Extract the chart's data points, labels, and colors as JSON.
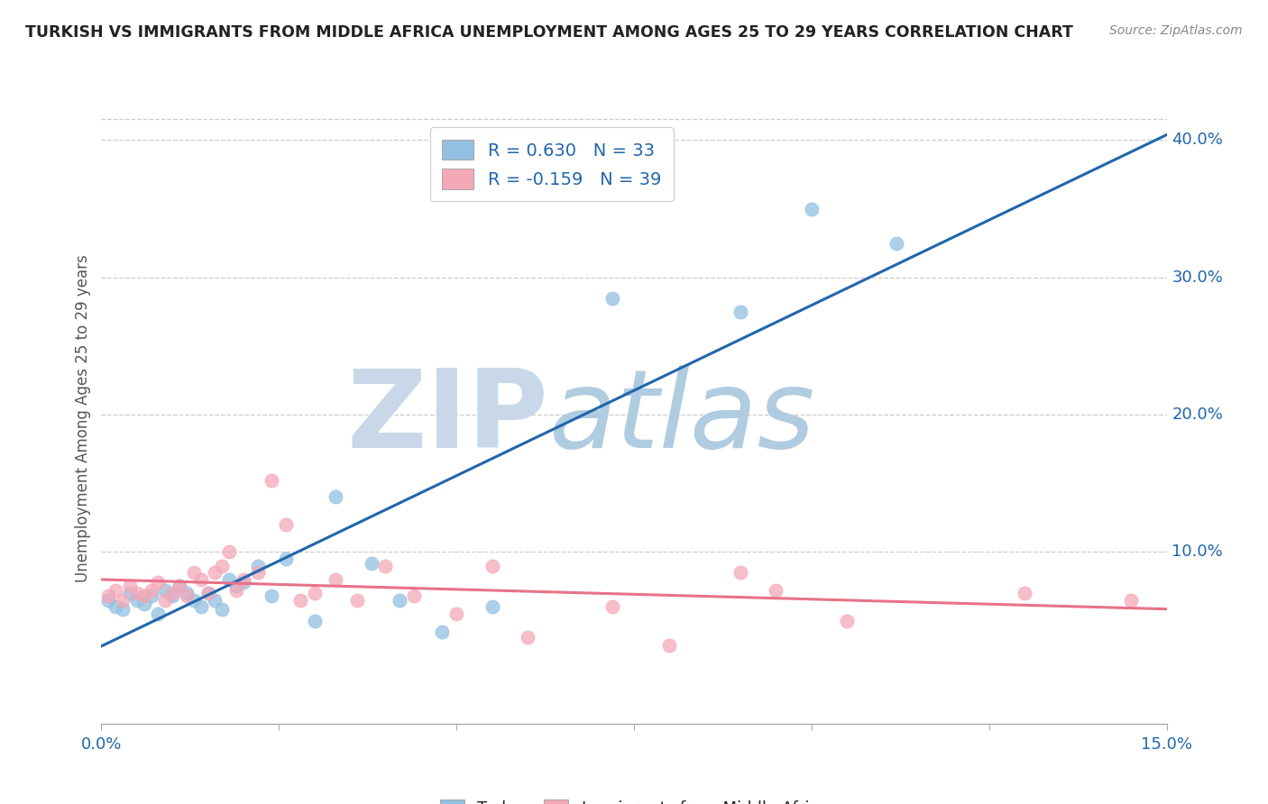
{
  "title": "TURKISH VS IMMIGRANTS FROM MIDDLE AFRICA UNEMPLOYMENT AMONG AGES 25 TO 29 YEARS CORRELATION CHART",
  "source": "Source: ZipAtlas.com",
  "ylabel": "Unemployment Among Ages 25 to 29 years",
  "xlim": [
    0.0,
    0.15
  ],
  "ylim": [
    -0.025,
    0.42
  ],
  "xticks": [
    0.0,
    0.025,
    0.05,
    0.075,
    0.1,
    0.125,
    0.15
  ],
  "xtick_labels": [
    "0.0%",
    "",
    "",
    "",
    "",
    "",
    "15.0%"
  ],
  "yticks_right": [
    0.1,
    0.2,
    0.3,
    0.4
  ],
  "ytick_labels_right": [
    "10.0%",
    "20.0%",
    "30.0%",
    "40.0%"
  ],
  "turks_color": "#92c0e0",
  "immigrants_color": "#f4a8b8",
  "turks_R": 0.63,
  "turks_N": 33,
  "immigrants_R": -0.159,
  "immigrants_N": 39,
  "trend_blue_color": "#2166ac",
  "trend_pink_color": "#e8728a",
  "watermark_zip_color": "#c8d8e8",
  "watermark_atlas_color": "#a8c4d8",
  "legend_R_color": "#2166ac",
  "legend_N_color": "#2166ac",
  "legend_text_color": "#222222",
  "turks_x": [
    0.001,
    0.002,
    0.003,
    0.004,
    0.005,
    0.006,
    0.007,
    0.008,
    0.009,
    0.01,
    0.011,
    0.012,
    0.013,
    0.014,
    0.015,
    0.016,
    0.017,
    0.018,
    0.019,
    0.02,
    0.022,
    0.024,
    0.026,
    0.03,
    0.033,
    0.038,
    0.042,
    0.048,
    0.055,
    0.072,
    0.09,
    0.1,
    0.112
  ],
  "turks_y": [
    0.065,
    0.06,
    0.058,
    0.07,
    0.065,
    0.062,
    0.068,
    0.055,
    0.072,
    0.068,
    0.075,
    0.07,
    0.065,
    0.06,
    0.07,
    0.065,
    0.058,
    0.08,
    0.075,
    0.078,
    0.09,
    0.068,
    0.095,
    0.05,
    0.14,
    0.092,
    0.065,
    0.042,
    0.06,
    0.285,
    0.275,
    0.35,
    0.325
  ],
  "immigrants_x": [
    0.001,
    0.002,
    0.003,
    0.004,
    0.005,
    0.006,
    0.007,
    0.008,
    0.009,
    0.01,
    0.011,
    0.012,
    0.013,
    0.014,
    0.015,
    0.016,
    0.017,
    0.018,
    0.019,
    0.02,
    0.022,
    0.024,
    0.026,
    0.028,
    0.03,
    0.033,
    0.036,
    0.04,
    0.044,
    0.05,
    0.055,
    0.06,
    0.072,
    0.08,
    0.09,
    0.095,
    0.105,
    0.13,
    0.145
  ],
  "immigrants_y": [
    0.068,
    0.072,
    0.065,
    0.075,
    0.07,
    0.068,
    0.072,
    0.078,
    0.065,
    0.07,
    0.075,
    0.068,
    0.085,
    0.08,
    0.07,
    0.085,
    0.09,
    0.1,
    0.072,
    0.08,
    0.085,
    0.152,
    0.12,
    0.065,
    0.07,
    0.08,
    0.065,
    0.09,
    0.068,
    0.055,
    0.09,
    0.038,
    0.06,
    0.032,
    0.085,
    0.072,
    0.05,
    0.07,
    0.065
  ],
  "background_color": "#ffffff",
  "grid_color": "#cccccc"
}
